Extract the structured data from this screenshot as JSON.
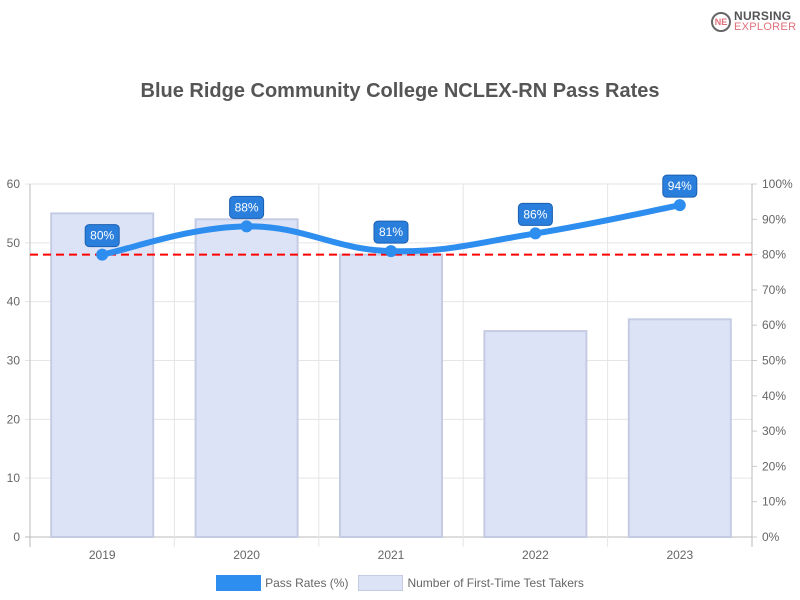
{
  "logo": {
    "line1": "NURSING",
    "line2": "EXPLORER",
    "mark": "NE"
  },
  "chart_data": {
    "type": "bar",
    "title": "Blue Ridge Community College NCLEX-RN Pass Rates",
    "categories": [
      "2019",
      "2020",
      "2021",
      "2022",
      "2023"
    ],
    "series": [
      {
        "name": "Pass Rates (%)",
        "type": "line",
        "axis": "right",
        "values": [
          80,
          88,
          81,
          86,
          94
        ],
        "labels": [
          "80%",
          "88%",
          "81%",
          "86%",
          "94%"
        ],
        "color": "#2e8ef0"
      },
      {
        "name": "Number of First-Time Test Takers",
        "type": "bar",
        "axis": "left",
        "values": [
          55,
          54,
          48,
          35,
          37
        ],
        "color": "#dde3f7"
      }
    ],
    "reference_line": {
      "axis": "right",
      "value": 80,
      "color": "#ff0000",
      "style": "dashed"
    },
    "left_axis": {
      "ylim": [
        0,
        60
      ],
      "ticks": [
        "0",
        "10",
        "20",
        "30",
        "40",
        "50",
        "60"
      ]
    },
    "right_axis": {
      "ylim": [
        0,
        100
      ],
      "ticks": [
        "0%",
        "10%",
        "20%",
        "30%",
        "40%",
        "50%",
        "60%",
        "70%",
        "80%",
        "90%",
        "100%"
      ]
    },
    "legend": "bottom",
    "grid": true
  }
}
